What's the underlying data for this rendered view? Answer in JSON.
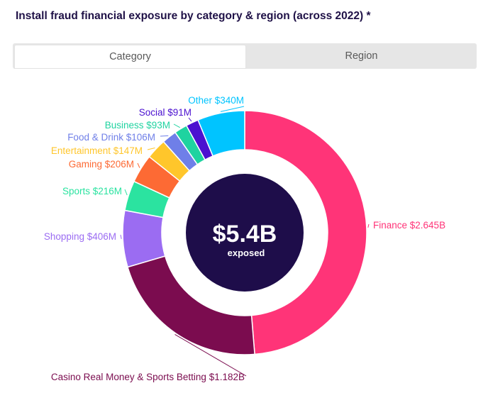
{
  "title": "Install fraud financial exposure by category & region (across 2022) *",
  "tabs": [
    {
      "label": "Category",
      "active": true
    },
    {
      "label": "Region",
      "active": false
    }
  ],
  "center": {
    "value": "$5.4B",
    "label": "exposed",
    "color": "#1e0d4a"
  },
  "chart_data": {
    "type": "pie",
    "variant": "donut",
    "unit": "$M",
    "slices": [
      {
        "name": "Finance",
        "value": 2645,
        "label": "Finance $2.645B",
        "color": "#ff3478"
      },
      {
        "name": "Casino Real Money & Sports Betting",
        "value": 1182,
        "label": "Casino Real Money & Sports Betting $1.182B",
        "color": "#7b0c4f"
      },
      {
        "name": "Shopping",
        "value": 406,
        "label": "Shopping $406M",
        "color": "#9b6cf2"
      },
      {
        "name": "Sports",
        "value": 216,
        "label": "Sports $216M",
        "color": "#2be3a0"
      },
      {
        "name": "Gaming",
        "value": 206,
        "label": "Gaming $206M",
        "color": "#fd6a34"
      },
      {
        "name": "Entertainment",
        "value": 147,
        "label": "Entertainment $147M",
        "color": "#ffc62b"
      },
      {
        "name": "Food & Drink",
        "value": 106,
        "label": "Food & Drink $106M",
        "color": "#6f7fe8"
      },
      {
        "name": "Business",
        "value": 93,
        "label": "Business $93M",
        "color": "#1fd3a0"
      },
      {
        "name": "Social",
        "value": 91,
        "label": "Social $91M",
        "color": "#4b11d0"
      },
      {
        "name": "Other",
        "value": 340,
        "label": "Other $340M",
        "color": "#00c4ff"
      }
    ]
  }
}
